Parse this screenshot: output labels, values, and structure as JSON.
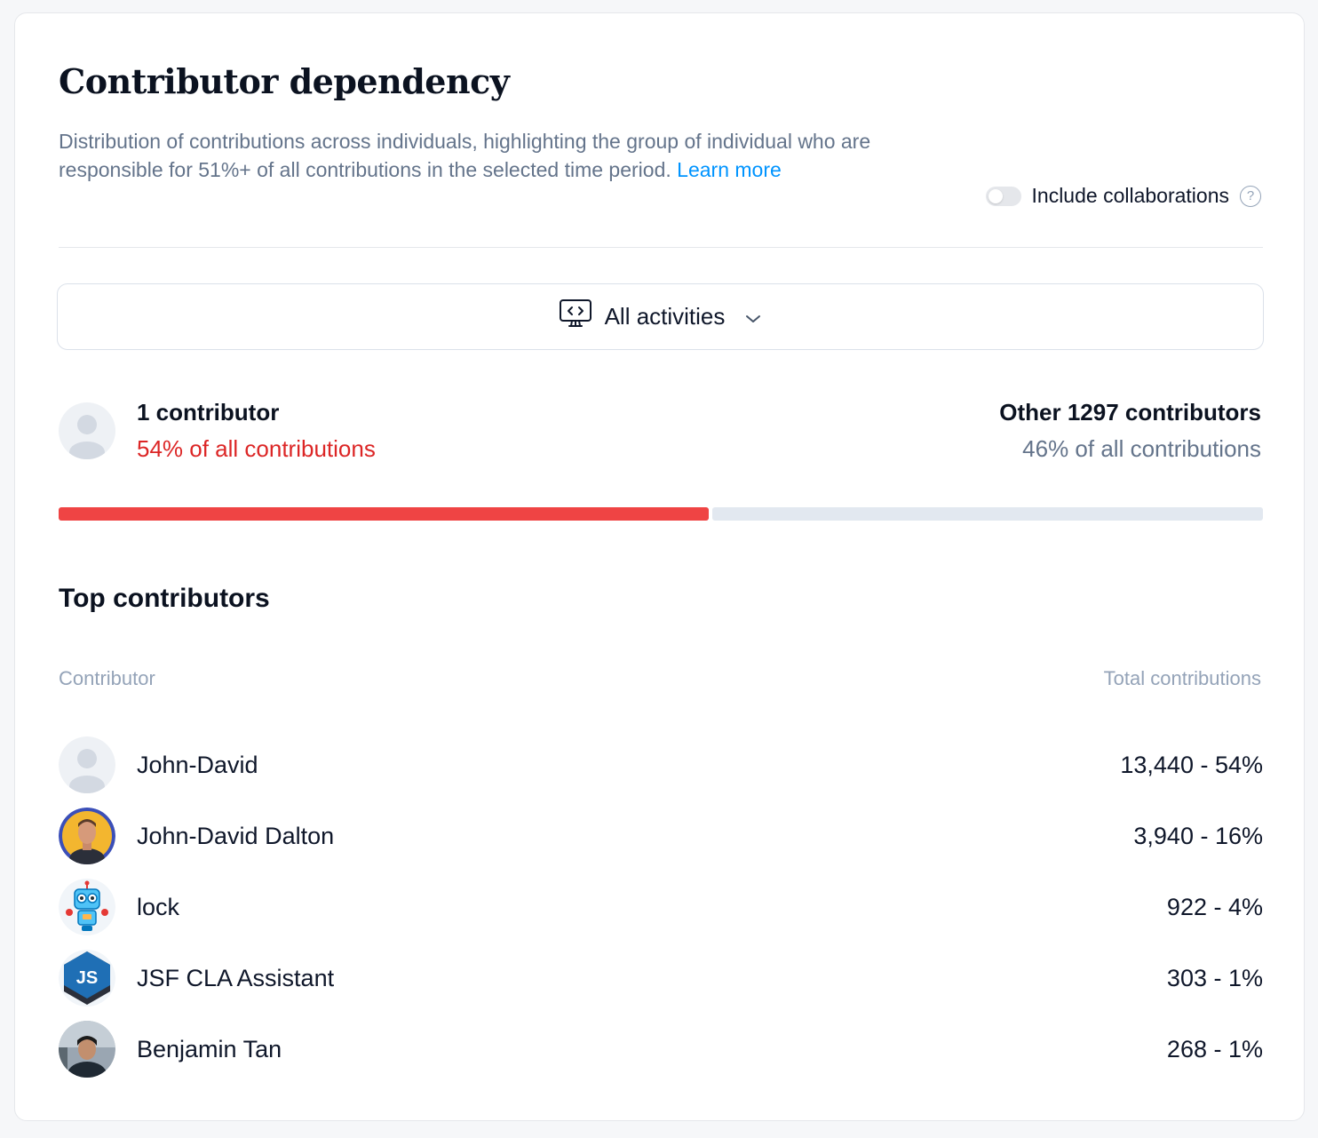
{
  "header": {
    "title": "Contributor dependency",
    "description": "Distribution of contributions across individuals, highlighting the group of individual who are responsible for 51%+ of all contributions in the selected time period.",
    "learn_more": "Learn more"
  },
  "toggle": {
    "label": "Include collaborations",
    "on": false,
    "help_icon": "question-circle-icon"
  },
  "filter": {
    "label": "All activities",
    "icon": "monitor-code-icon"
  },
  "summary": {
    "left_title": "1 contributor",
    "left_sub": "54% of all contributions",
    "right_title": "Other 1297 contributors",
    "right_sub": "46% of all contributions",
    "share_percent": 54,
    "accent_color": "#ef4444",
    "rest_color": "#e2e8f0"
  },
  "top": {
    "title": "Top contributors",
    "col_contributor": "Contributor",
    "col_total": "Total contributions",
    "rows": [
      {
        "name": "John-David",
        "value": "13,440 - 54%",
        "avatar": "placeholder"
      },
      {
        "name": "John-David Dalton",
        "value": "3,940 - 16%",
        "avatar": "photo"
      },
      {
        "name": "lock",
        "value": "922 - 4%",
        "avatar": "robot"
      },
      {
        "name": "JSF CLA Assistant",
        "value": "303 - 1%",
        "avatar": "js-logo"
      },
      {
        "name": "Benjamin Tan",
        "value": "268 - 1%",
        "avatar": "photo"
      }
    ]
  }
}
